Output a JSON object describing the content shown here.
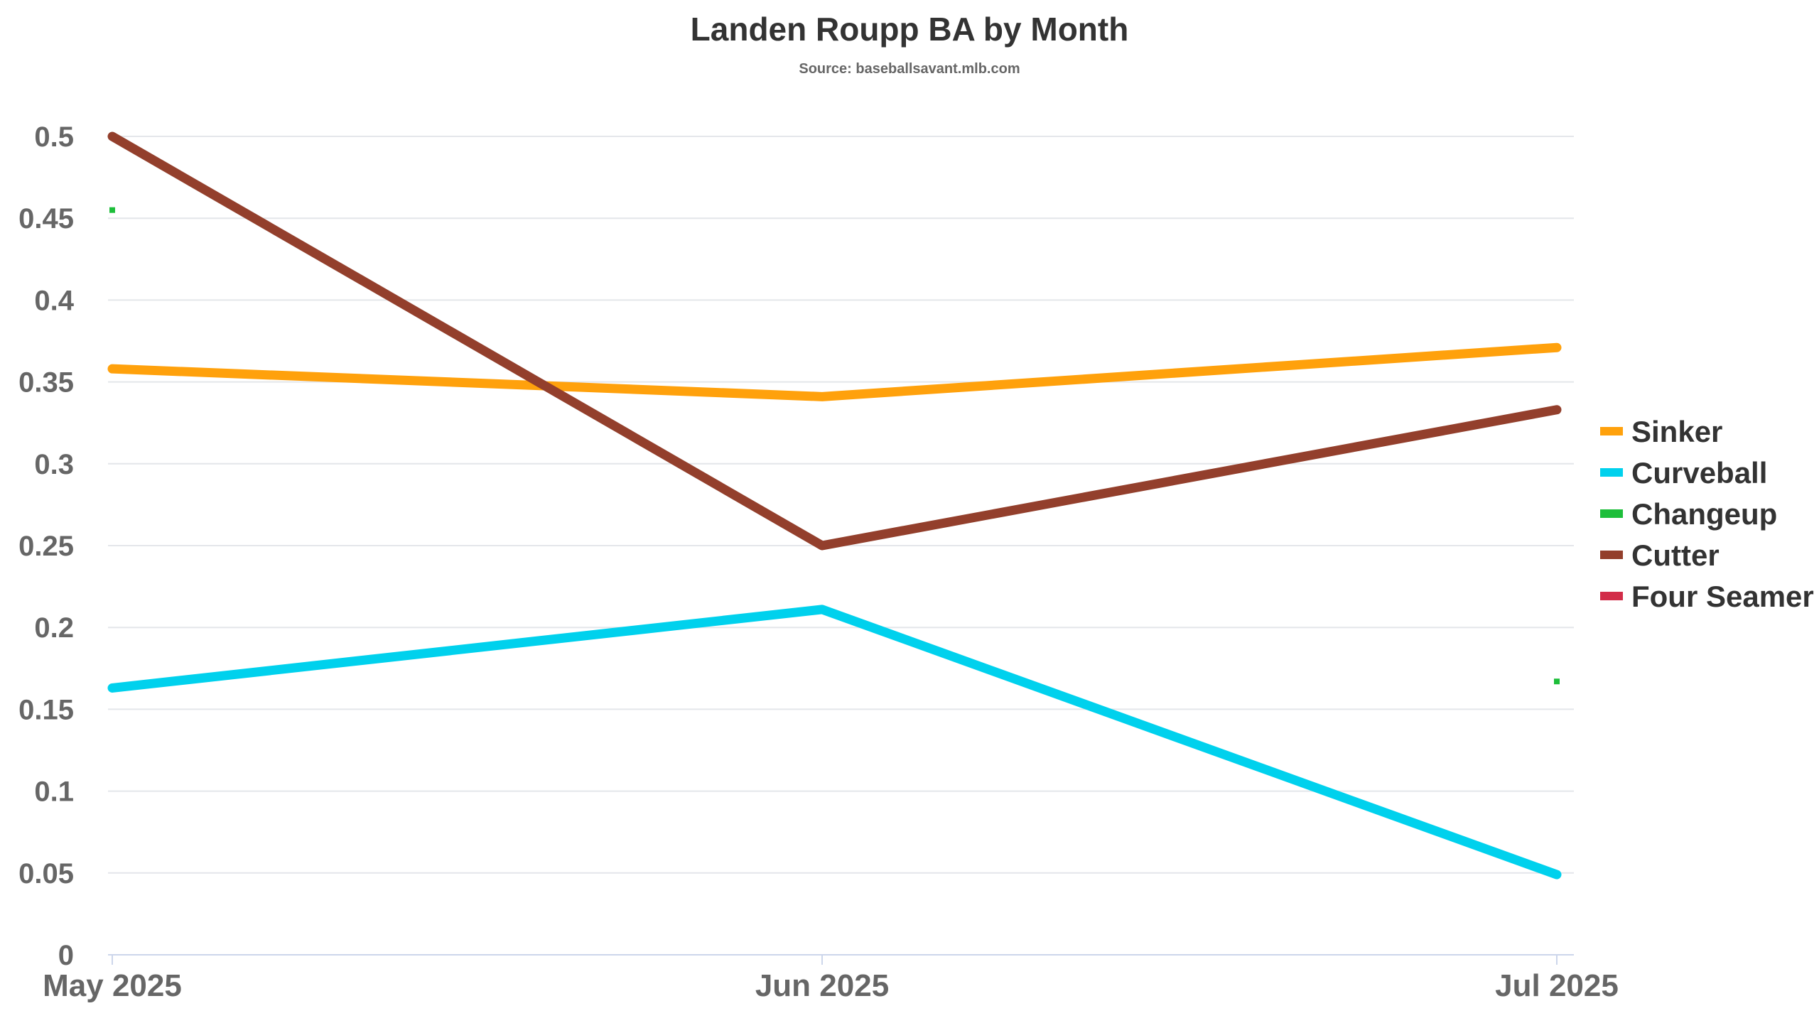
{
  "chart_data": {
    "type": "line",
    "title": "Landen Roupp BA by Month",
    "subtitle": "Source: baseballsavant.mlb.com",
    "xlabel": "",
    "ylabel": "",
    "categories": [
      "May 2025",
      "Jun 2025",
      "Jul 2025"
    ],
    "ylim": [
      0,
      0.5
    ],
    "yticks": [
      {
        "value": 0,
        "label": "0"
      },
      {
        "value": 0.05,
        "label": "0.05"
      },
      {
        "value": 0.1,
        "label": "0.1"
      },
      {
        "value": 0.15,
        "label": "0.15"
      },
      {
        "value": 0.2,
        "label": "0.2"
      },
      {
        "value": 0.25,
        "label": "0.25"
      },
      {
        "value": 0.3,
        "label": "0.3"
      },
      {
        "value": 0.35,
        "label": "0.35"
      },
      {
        "value": 0.4,
        "label": "0.4"
      },
      {
        "value": 0.45,
        "label": "0.45"
      },
      {
        "value": 0.5,
        "label": "0.5"
      }
    ],
    "grid": true,
    "legend_position": "right",
    "series": [
      {
        "name": "Sinker",
        "color": "#FFA10C",
        "values": [
          0.358,
          0.341,
          0.371
        ]
      },
      {
        "name": "Curveball",
        "color": "#00D1ED",
        "values": [
          0.163,
          0.211,
          0.049
        ]
      },
      {
        "name": "Changeup",
        "color": "#1DBE3A",
        "values": [
          0.455,
          null,
          0.167
        ]
      },
      {
        "name": "Cutter",
        "color": "#933F2C",
        "values": [
          0.5,
          0.25,
          0.333
        ]
      },
      {
        "name": "Four Seamer",
        "color": "#D22D49",
        "values": [
          null,
          null,
          null
        ]
      }
    ]
  }
}
